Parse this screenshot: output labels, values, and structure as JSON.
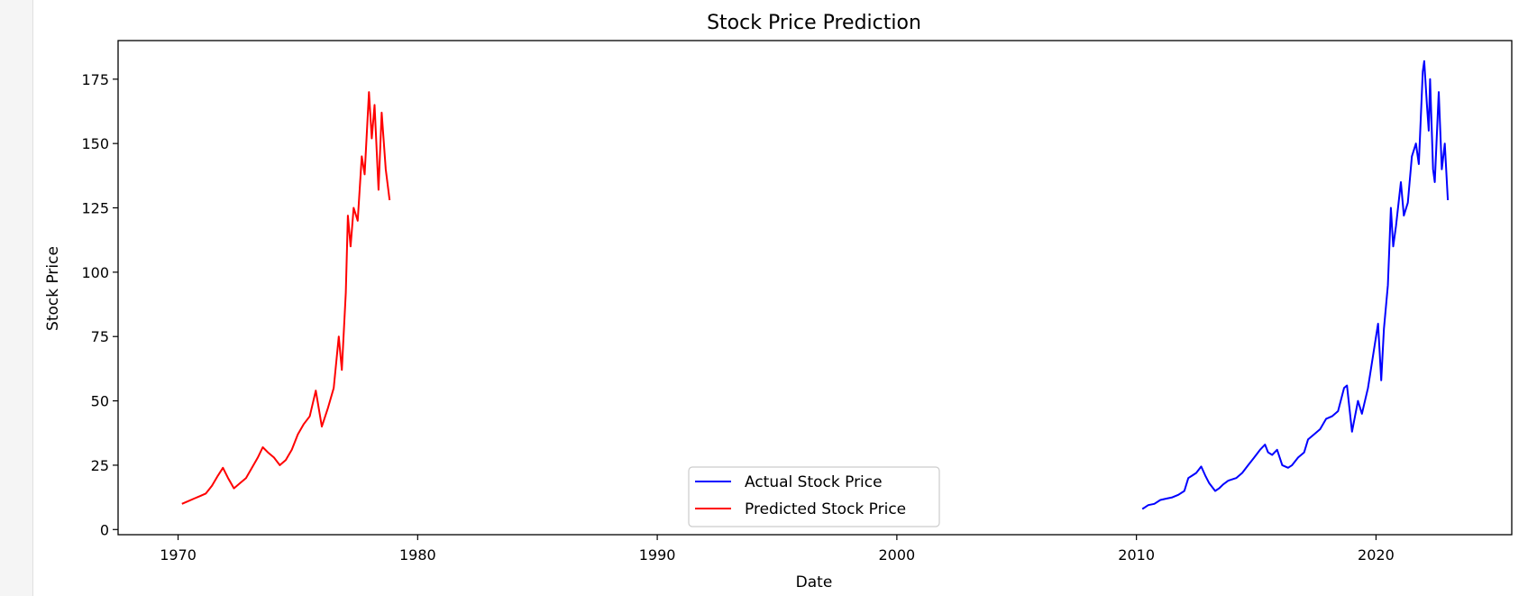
{
  "chart_data": {
    "type": "line",
    "title": "Stock Price Prediction",
    "xlabel": "Date",
    "ylabel": "Stock Price",
    "xlim": [
      "1967-07-01",
      "2025-09-01"
    ],
    "ylim": [
      -2,
      190
    ],
    "x_ticks": [
      "1970",
      "1980",
      "1990",
      "2000",
      "2010",
      "2020"
    ],
    "y_ticks": [
      0,
      25,
      50,
      75,
      100,
      125,
      150,
      175
    ],
    "grid": false,
    "legend": {
      "placement": "lower-center"
    },
    "series": [
      {
        "name": "Actual Stock Price",
        "color": "#0000ff",
        "points": [
          [
            "2010-04-01",
            8
          ],
          [
            "2010-07-01",
            9.5
          ],
          [
            "2010-10-01",
            10
          ],
          [
            "2011-01-01",
            11.5
          ],
          [
            "2011-04-01",
            12
          ],
          [
            "2011-07-01",
            12.5
          ],
          [
            "2011-10-01",
            13.5
          ],
          [
            "2012-01-01",
            15
          ],
          [
            "2012-03-01",
            20
          ],
          [
            "2012-05-01",
            21
          ],
          [
            "2012-07-01",
            22
          ],
          [
            "2012-09-15",
            24.5
          ],
          [
            "2012-11-15",
            21
          ],
          [
            "2013-01-15",
            18
          ],
          [
            "2013-04-15",
            15
          ],
          [
            "2013-06-15",
            16
          ],
          [
            "2013-08-15",
            17.5
          ],
          [
            "2013-11-01",
            19
          ],
          [
            "2014-03-01",
            20
          ],
          [
            "2014-06-01",
            22
          ],
          [
            "2014-09-01",
            25
          ],
          [
            "2014-12-01",
            28
          ],
          [
            "2015-03-01",
            31
          ],
          [
            "2015-05-15",
            33
          ],
          [
            "2015-07-01",
            30
          ],
          [
            "2015-09-01",
            29
          ],
          [
            "2015-11-15",
            31
          ],
          [
            "2016-02-01",
            25
          ],
          [
            "2016-05-01",
            24
          ],
          [
            "2016-07-01",
            25
          ],
          [
            "2016-10-01",
            28
          ],
          [
            "2017-01-01",
            30
          ],
          [
            "2017-03-01",
            35
          ],
          [
            "2017-06-01",
            37
          ],
          [
            "2017-09-01",
            39
          ],
          [
            "2017-12-01",
            43
          ],
          [
            "2018-03-01",
            44
          ],
          [
            "2018-06-01",
            46
          ],
          [
            "2018-09-01",
            55
          ],
          [
            "2018-10-15",
            56
          ],
          [
            "2019-01-01",
            38
          ],
          [
            "2019-04-01",
            50
          ],
          [
            "2019-06-01",
            45
          ],
          [
            "2019-09-01",
            55
          ],
          [
            "2019-12-01",
            70
          ],
          [
            "2020-02-01",
            80
          ],
          [
            "2020-03-20",
            58
          ],
          [
            "2020-05-01",
            78
          ],
          [
            "2020-07-01",
            95
          ],
          [
            "2020-08-15",
            125
          ],
          [
            "2020-09-20",
            110
          ],
          [
            "2020-11-01",
            118
          ],
          [
            "2021-01-15",
            135
          ],
          [
            "2021-03-01",
            122
          ],
          [
            "2021-05-01",
            127
          ],
          [
            "2021-07-01",
            145
          ],
          [
            "2021-09-01",
            150
          ],
          [
            "2021-10-15",
            142
          ],
          [
            "2021-12-15",
            178
          ],
          [
            "2022-01-05",
            182
          ],
          [
            "2022-02-15",
            165
          ],
          [
            "2022-03-15",
            155
          ],
          [
            "2022-04-05",
            175
          ],
          [
            "2022-05-20",
            140
          ],
          [
            "2022-06-15",
            135
          ],
          [
            "2022-08-15",
            170
          ],
          [
            "2022-09-30",
            140
          ],
          [
            "2022-11-15",
            150
          ],
          [
            "2022-12-31",
            128
          ]
        ]
      },
      {
        "name": "Predicted Stock Price",
        "color": "#ff0000",
        "points": [
          [
            "1970-03-01",
            10
          ],
          [
            "1970-06-01",
            11
          ],
          [
            "1970-09-01",
            12
          ],
          [
            "1970-12-01",
            13
          ],
          [
            "1971-03-01",
            14
          ],
          [
            "1971-06-01",
            17
          ],
          [
            "1971-09-01",
            21
          ],
          [
            "1971-11-15",
            24
          ],
          [
            "1972-02-01",
            20
          ],
          [
            "1972-05-01",
            16
          ],
          [
            "1972-08-01",
            18
          ],
          [
            "1972-11-01",
            20
          ],
          [
            "1973-02-01",
            24
          ],
          [
            "1973-05-01",
            28
          ],
          [
            "1973-07-15",
            32
          ],
          [
            "1973-10-01",
            30
          ],
          [
            "1974-01-01",
            28
          ],
          [
            "1974-04-01",
            25
          ],
          [
            "1974-07-01",
            27
          ],
          [
            "1974-10-01",
            31
          ],
          [
            "1975-01-01",
            37
          ],
          [
            "1975-04-01",
            41
          ],
          [
            "1975-07-01",
            44
          ],
          [
            "1975-10-01",
            54
          ],
          [
            "1976-01-01",
            40
          ],
          [
            "1976-04-01",
            47
          ],
          [
            "1976-07-01",
            55
          ],
          [
            "1976-09-15",
            75
          ],
          [
            "1976-11-01",
            62
          ],
          [
            "1977-01-01",
            92
          ],
          [
            "1977-02-01",
            122
          ],
          [
            "1977-03-15",
            110
          ],
          [
            "1977-05-01",
            125
          ],
          [
            "1977-07-01",
            120
          ],
          [
            "1977-09-01",
            145
          ],
          [
            "1977-10-15",
            138
          ],
          [
            "1977-12-20",
            170
          ],
          [
            "1978-02-01",
            152
          ],
          [
            "1978-03-15",
            165
          ],
          [
            "1978-05-15",
            132
          ],
          [
            "1978-07-01",
            162
          ],
          [
            "1978-09-01",
            140
          ],
          [
            "1978-10-30",
            128
          ]
        ]
      }
    ]
  }
}
